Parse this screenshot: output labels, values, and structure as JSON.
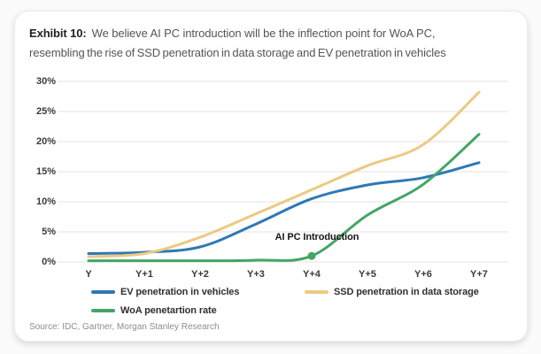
{
  "title": {
    "prefix": "Exhibit 10:",
    "line1": "We believe AI PC introduction will be the inflection point for WoA PC,",
    "line2": "resembling the rise of SSD penetration in data storage and EV penetration in vehicles"
  },
  "source": "Source: IDC, Gartner, Morgan Stanley Research",
  "chart_data": {
    "type": "line",
    "x": [
      "Y",
      "Y+1",
      "Y+2",
      "Y+3",
      "Y+4",
      "Y+5",
      "Y+6",
      "Y+7"
    ],
    "series": [
      {
        "name": "EV penetration in vehicles",
        "color": "#2d79b5",
        "values": [
          1.4,
          1.6,
          2.5,
          6.3,
          10.5,
          12.8,
          14.0,
          16.5
        ]
      },
      {
        "name": "SSD penetration in data storage",
        "color": "#ebca81",
        "values": [
          0.9,
          1.4,
          4.1,
          8.0,
          12.0,
          16.0,
          19.5,
          28.2
        ]
      },
      {
        "name": "WoA penetartion rate",
        "color": "#44a567",
        "values": [
          0.2,
          0.2,
          0.2,
          0.3,
          1.0,
          7.8,
          12.9,
          21.2
        ]
      }
    ],
    "ylim": [
      0,
      30
    ],
    "yticks": [
      "0%",
      "5%",
      "10%",
      "15%",
      "20%",
      "25%",
      "30%"
    ],
    "grid": true,
    "grid_color": "#e3e3e3",
    "legend_position": "bottom",
    "annotation": {
      "label": "AI PC Introduction",
      "series": "WoA penetartion rate",
      "x_index": 4,
      "value": 1.0
    }
  }
}
